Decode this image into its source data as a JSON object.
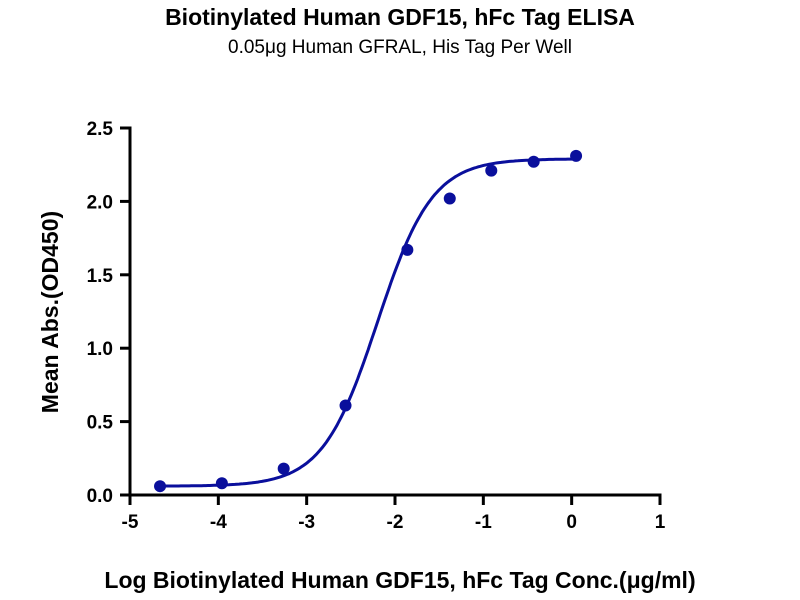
{
  "chart_data": {
    "type": "scatter",
    "title": "Biotinylated Human GDF15, hFc Tag ELISA",
    "subtitle": "0.05μg Human GFRAL, His Tag Per Well",
    "xlabel": "Log Biotinylated Human GDF15, hFc Tag Conc.(μg/ml)",
    "ylabel": "Mean Abs.(OD450)",
    "xlim": [
      -5,
      1
    ],
    "ylim": [
      0,
      2.5
    ],
    "xticks": [
      "-5",
      "-4",
      "-3",
      "-2",
      "-1",
      "0",
      "1"
    ],
    "yticks": [
      "0.0",
      "0.5",
      "1.0",
      "1.5",
      "2.0",
      "2.5"
    ],
    "grid": false,
    "color": "#0a0f9c",
    "series": [
      {
        "name": "GDF15",
        "x": [
          -4.66,
          -3.96,
          -3.26,
          -2.56,
          -1.86,
          -1.38,
          -0.91,
          -0.43,
          0.05
        ],
        "y": [
          0.06,
          0.08,
          0.18,
          0.61,
          1.67,
          2.02,
          2.21,
          2.27,
          2.31
        ]
      }
    ],
    "fit": {
      "model": "4PL",
      "bottom": 0.06,
      "top": 2.29,
      "logEC50": -2.2,
      "hill": 1.4
    }
  }
}
